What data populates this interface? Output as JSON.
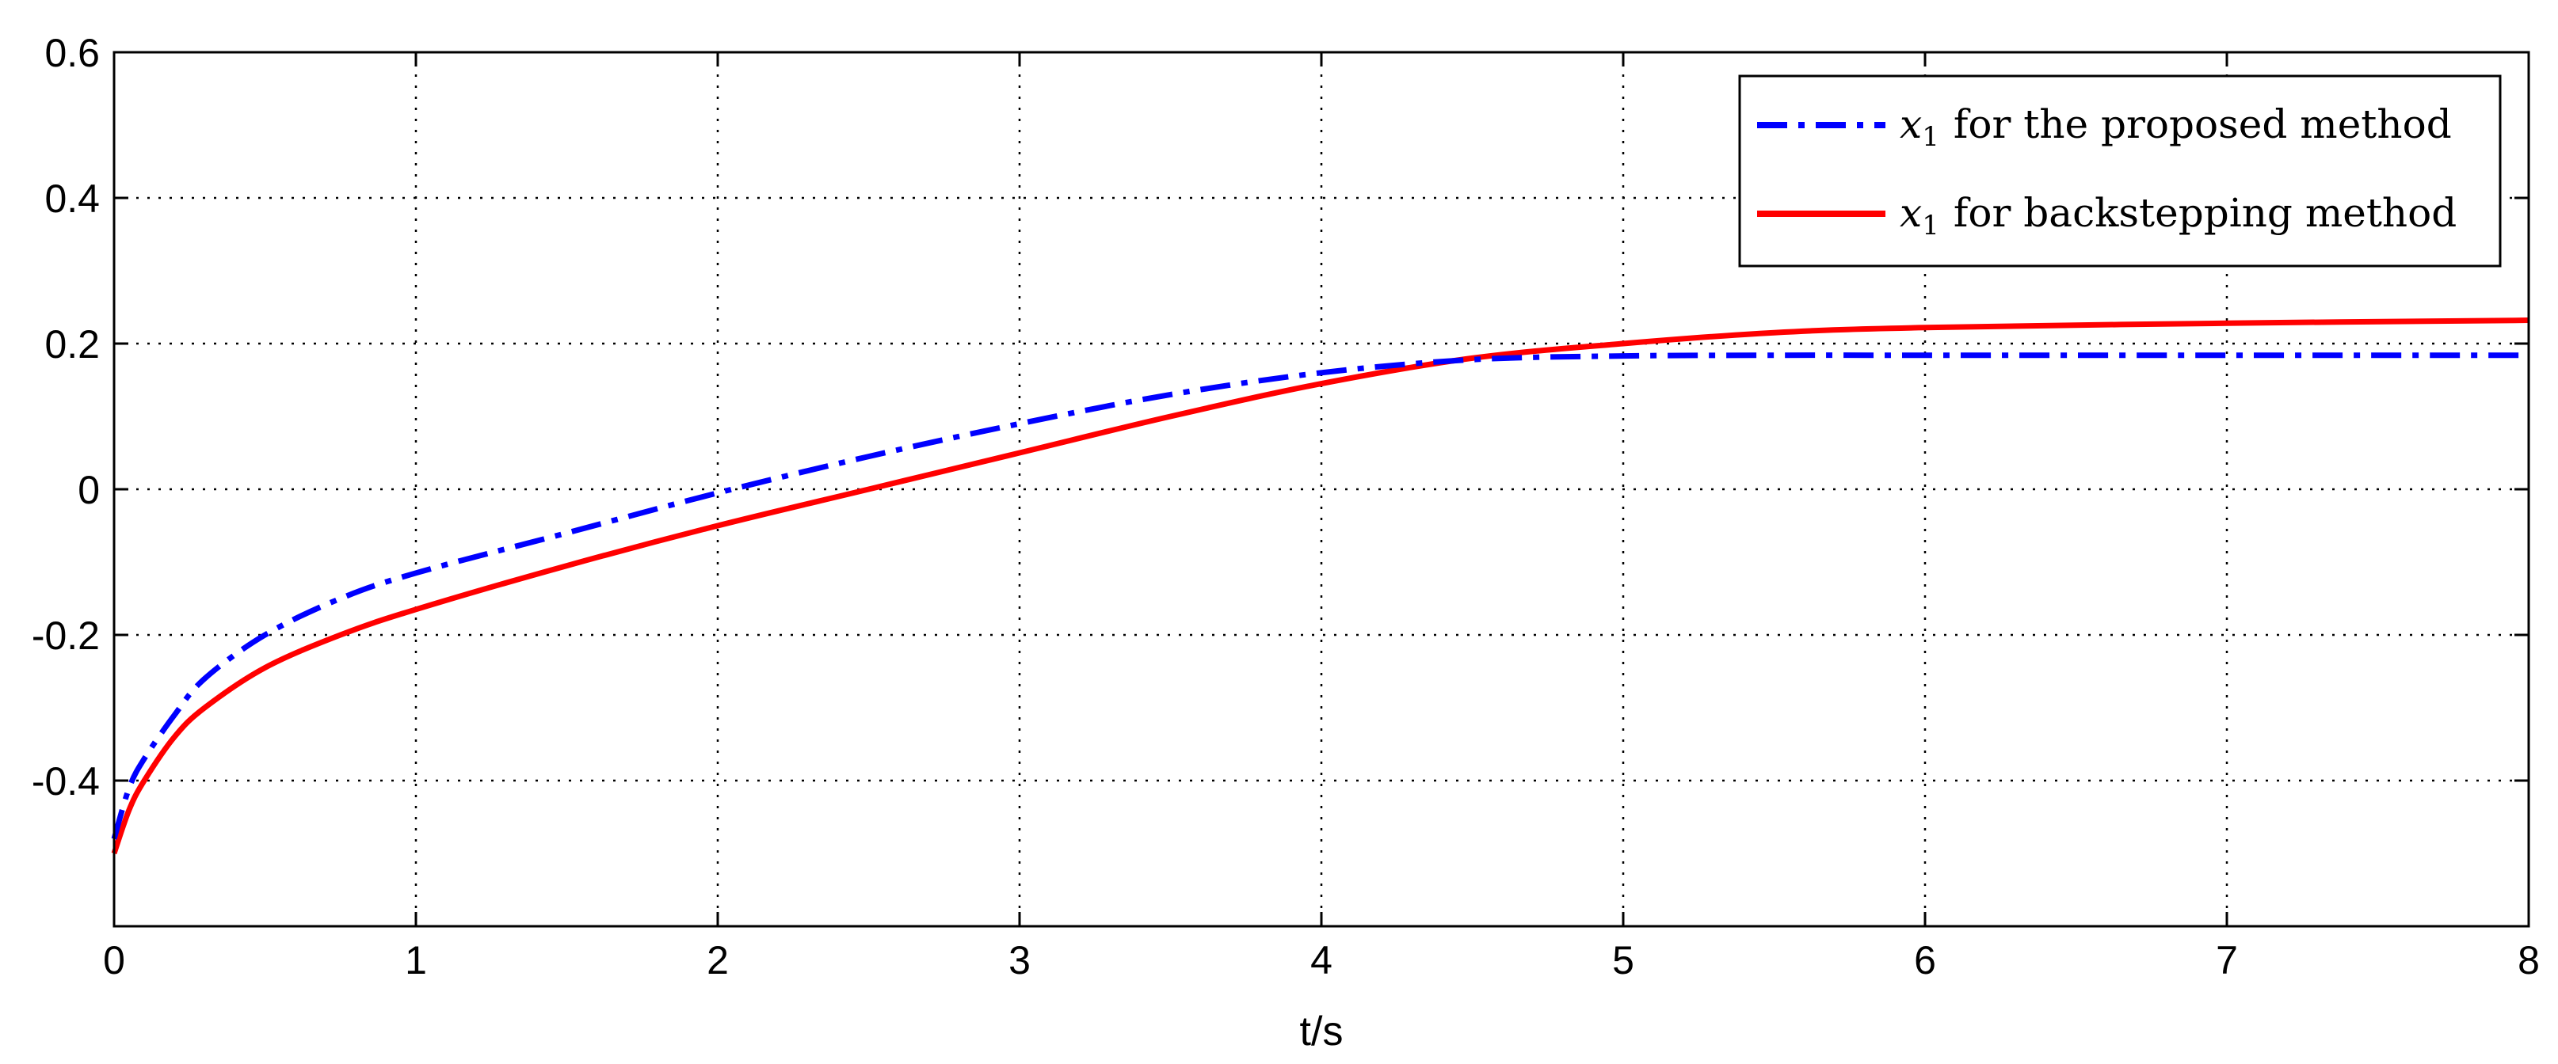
{
  "chart_data": {
    "type": "line",
    "title": "",
    "xlabel": "t/s",
    "ylabel": "",
    "xlim": [
      0,
      8
    ],
    "ylim": [
      -0.6,
      0.6
    ],
    "xticks": [
      "0",
      "1",
      "2",
      "3",
      "4",
      "5",
      "6",
      "7",
      "8"
    ],
    "yticks": [
      "0.6",
      "0.4",
      "0.2",
      "0",
      "-0.2",
      "-0.4"
    ],
    "grid": true,
    "legend_position": "top-right",
    "series": [
      {
        "name": "x1 for the proposed method",
        "legend_main": "x",
        "legend_sub": "1",
        "legend_rest": "for the proposed method",
        "color": "#0000ff",
        "style": "dash-dot",
        "x": [
          0,
          0.05,
          0.1,
          0.2,
          0.3,
          0.5,
          0.75,
          1.0,
          1.5,
          2.0,
          2.5,
          3.0,
          3.5,
          4.0,
          4.5,
          5.0,
          5.5,
          6.0,
          7.0,
          8.0
        ],
        "y": [
          -0.48,
          -0.41,
          -0.37,
          -0.31,
          -0.26,
          -0.2,
          -0.15,
          -0.115,
          -0.06,
          -0.005,
          0.045,
          0.09,
          0.13,
          0.16,
          0.178,
          0.183,
          0.184,
          0.184,
          0.184,
          0.184
        ]
      },
      {
        "name": "x1 for backstepping method",
        "legend_main": "x",
        "legend_sub": "1",
        "legend_rest": "for backstepping method",
        "color": "#ff0000",
        "style": "solid",
        "x": [
          0,
          0.05,
          0.1,
          0.2,
          0.3,
          0.5,
          0.75,
          1.0,
          1.5,
          2.0,
          2.5,
          3.0,
          3.5,
          4.0,
          4.5,
          5.0,
          5.5,
          6.0,
          7.0,
          8.0
        ],
        "y": [
          -0.5,
          -0.44,
          -0.4,
          -0.34,
          -0.3,
          -0.245,
          -0.2,
          -0.165,
          -0.105,
          -0.05,
          0.0,
          0.05,
          0.1,
          0.145,
          0.18,
          0.2,
          0.215,
          0.222,
          0.228,
          0.232
        ]
      }
    ]
  }
}
